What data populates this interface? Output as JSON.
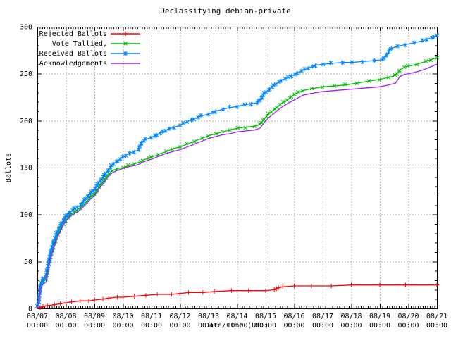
{
  "title": "Declassifying debian-private",
  "axes": {
    "x_label": "Date/Time (UTC)",
    "y_label": "Ballots",
    "y_ticks": [
      0,
      50,
      100,
      150,
      200,
      250,
      300
    ],
    "x_ticks": [
      {
        "date": "08/07",
        "time": "00:00"
      },
      {
        "date": "08/08",
        "time": "00:00"
      },
      {
        "date": "08/09",
        "time": "00:00"
      },
      {
        "date": "08/10",
        "time": "00:00"
      },
      {
        "date": "08/11",
        "time": "00:00"
      },
      {
        "date": "08/12",
        "time": "00:00"
      },
      {
        "date": "08/13",
        "time": "00:00"
      },
      {
        "date": "08/14",
        "time": "00:00"
      },
      {
        "date": "08/15",
        "time": "00:00"
      },
      {
        "date": "08/16",
        "time": "00:00"
      },
      {
        "date": "08/17",
        "time": "00:00"
      },
      {
        "date": "08/18",
        "time": "00:00"
      },
      {
        "date": "08/19",
        "time": "00:00"
      },
      {
        "date": "08/20",
        "time": "00:00"
      },
      {
        "date": "08/21",
        "time": "00:00"
      }
    ]
  },
  "colors": {
    "grid": "#b0b0b0",
    "axis": "#000000",
    "rejected": "#ff0000",
    "tallied": "#00bf00",
    "received": "#0086ff",
    "acknowledgements": "#a020f0"
  },
  "chart_data": {
    "type": "line",
    "x_unit": "days since 08/07 00:00 UTC",
    "xlim": [
      0,
      14
    ],
    "ylim": [
      0,
      300
    ],
    "grid": true,
    "legend_position": "top-left",
    "series": [
      {
        "name": "Rejected Ballots",
        "color": "#ff0000",
        "marker": "plus",
        "points": [
          [
            0,
            0
          ],
          [
            0.1,
            1
          ],
          [
            0.2,
            2
          ],
          [
            0.35,
            3
          ],
          [
            0.6,
            4
          ],
          [
            0.8,
            5
          ],
          [
            1,
            6
          ],
          [
            1.2,
            7
          ],
          [
            1.5,
            8
          ],
          [
            1.8,
            8
          ],
          [
            2,
            9
          ],
          [
            2.3,
            10
          ],
          [
            2.5,
            11
          ],
          [
            2.8,
            12
          ],
          [
            3,
            12
          ],
          [
            3.4,
            13
          ],
          [
            3.8,
            14
          ],
          [
            4.2,
            15
          ],
          [
            4.7,
            15
          ],
          [
            5,
            16
          ],
          [
            5.3,
            17
          ],
          [
            5.8,
            17
          ],
          [
            6.2,
            18
          ],
          [
            6.8,
            19
          ],
          [
            7.4,
            19
          ],
          [
            8,
            19
          ],
          [
            8.3,
            20
          ],
          [
            8.45,
            22
          ],
          [
            8.6,
            23
          ],
          [
            9,
            24
          ],
          [
            9.6,
            24
          ],
          [
            10.3,
            24
          ],
          [
            11,
            25
          ],
          [
            12,
            25
          ],
          [
            12.9,
            25
          ],
          [
            14,
            25
          ]
        ]
      },
      {
        "name": "Vote Tallied,",
        "color": "#00bf00",
        "marker": "cross",
        "points": [
          [
            0,
            0
          ],
          [
            0.05,
            8
          ],
          [
            0.09,
            18
          ],
          [
            0.13,
            25
          ],
          [
            0.2,
            29
          ],
          [
            0.3,
            31
          ],
          [
            0.36,
            40
          ],
          [
            0.44,
            52
          ],
          [
            0.52,
            61
          ],
          [
            0.62,
            71
          ],
          [
            0.72,
            79
          ],
          [
            0.82,
            85
          ],
          [
            0.92,
            90
          ],
          [
            1,
            94
          ],
          [
            1.15,
            99
          ],
          [
            1.3,
            103
          ],
          [
            1.5,
            107
          ],
          [
            1.7,
            113
          ],
          [
            1.85,
            118
          ],
          [
            2,
            122
          ],
          [
            2.15,
            129
          ],
          [
            2.3,
            135
          ],
          [
            2.45,
            141
          ],
          [
            2.6,
            146
          ],
          [
            2.8,
            149
          ],
          [
            3,
            150
          ],
          [
            3.2,
            152
          ],
          [
            3.4,
            154
          ],
          [
            3.6,
            156
          ],
          [
            3.7,
            158
          ],
          [
            3.9,
            160
          ],
          [
            4,
            161
          ],
          [
            4.25,
            164
          ],
          [
            4.5,
            167
          ],
          [
            4.75,
            170
          ],
          [
            5,
            172
          ],
          [
            5.25,
            175
          ],
          [
            5.5,
            178
          ],
          [
            5.75,
            181
          ],
          [
            6,
            184
          ],
          [
            6.25,
            186
          ],
          [
            6.5,
            188
          ],
          [
            6.75,
            190
          ],
          [
            7,
            192
          ],
          [
            7.3,
            193
          ],
          [
            7.6,
            194
          ],
          [
            7.8,
            196
          ],
          [
            7.95,
            202
          ],
          [
            8.1,
            207
          ],
          [
            8.3,
            212
          ],
          [
            8.5,
            217
          ],
          [
            8.75,
            222
          ],
          [
            9,
            228
          ],
          [
            9.3,
            232
          ],
          [
            9.6,
            234
          ],
          [
            10,
            236
          ],
          [
            10.4,
            237
          ],
          [
            10.8,
            238
          ],
          [
            11.2,
            240
          ],
          [
            11.6,
            242
          ],
          [
            12,
            244
          ],
          [
            12.3,
            246
          ],
          [
            12.55,
            248
          ],
          [
            12.7,
            254
          ],
          [
            12.85,
            257
          ],
          [
            13,
            258
          ],
          [
            13.3,
            260
          ],
          [
            13.6,
            263
          ],
          [
            14,
            267
          ]
        ]
      },
      {
        "name": "Received Ballots",
        "color": "#0086ff",
        "marker": "star",
        "points": [
          [
            0,
            0
          ],
          [
            0.04,
            6
          ],
          [
            0.07,
            14
          ],
          [
            0.1,
            22
          ],
          [
            0.14,
            28
          ],
          [
            0.2,
            31
          ],
          [
            0.3,
            33
          ],
          [
            0.35,
            42
          ],
          [
            0.42,
            54
          ],
          [
            0.5,
            64
          ],
          [
            0.6,
            74
          ],
          [
            0.7,
            82
          ],
          [
            0.8,
            88
          ],
          [
            0.9,
            93
          ],
          [
            1,
            98
          ],
          [
            1.15,
            103
          ],
          [
            1.3,
            106
          ],
          [
            1.5,
            110
          ],
          [
            1.7,
            117
          ],
          [
            1.85,
            122
          ],
          [
            2,
            127
          ],
          [
            2.15,
            134
          ],
          [
            2.3,
            140
          ],
          [
            2.45,
            146
          ],
          [
            2.6,
            152
          ],
          [
            2.75,
            156
          ],
          [
            2.9,
            159
          ],
          [
            3,
            161
          ],
          [
            3.2,
            165
          ],
          [
            3.4,
            167
          ],
          [
            3.55,
            169
          ],
          [
            3.65,
            177
          ],
          [
            3.8,
            180
          ],
          [
            4,
            182
          ],
          [
            4.2,
            185
          ],
          [
            4.4,
            188
          ],
          [
            4.6,
            191
          ],
          [
            4.8,
            193
          ],
          [
            5,
            195
          ],
          [
            5.25,
            199
          ],
          [
            5.5,
            202
          ],
          [
            5.75,
            205
          ],
          [
            6,
            207
          ],
          [
            6.25,
            210
          ],
          [
            6.5,
            212
          ],
          [
            6.75,
            214
          ],
          [
            7,
            215
          ],
          [
            7.25,
            217
          ],
          [
            7.5,
            218
          ],
          [
            7.7,
            219
          ],
          [
            7.8,
            222
          ],
          [
            7.95,
            229
          ],
          [
            8.15,
            234
          ],
          [
            8.35,
            239
          ],
          [
            8.55,
            243
          ],
          [
            8.8,
            246
          ],
          [
            9,
            249
          ],
          [
            9.25,
            253
          ],
          [
            9.5,
            256
          ],
          [
            9.75,
            259
          ],
          [
            10,
            260
          ],
          [
            10.3,
            261
          ],
          [
            10.7,
            262
          ],
          [
            11,
            262
          ],
          [
            11.4,
            263
          ],
          [
            11.8,
            264
          ],
          [
            12.1,
            265
          ],
          [
            12.25,
            271
          ],
          [
            12.4,
            277
          ],
          [
            12.6,
            279
          ],
          [
            12.9,
            281
          ],
          [
            13.2,
            283
          ],
          [
            13.5,
            285
          ],
          [
            13.8,
            288
          ],
          [
            14,
            291
          ]
        ]
      },
      {
        "name": "Acknowledgements",
        "color": "#a020f0",
        "marker": "none",
        "points": [
          [
            0,
            0
          ],
          [
            0.05,
            6
          ],
          [
            0.09,
            16
          ],
          [
            0.13,
            23
          ],
          [
            0.2,
            26
          ],
          [
            0.3,
            28
          ],
          [
            0.36,
            38
          ],
          [
            0.44,
            50
          ],
          [
            0.52,
            59
          ],
          [
            0.62,
            69
          ],
          [
            0.72,
            77
          ],
          [
            0.82,
            83
          ],
          [
            0.92,
            89
          ],
          [
            1,
            93
          ],
          [
            1.15,
            98
          ],
          [
            1.3,
            101
          ],
          [
            1.5,
            105
          ],
          [
            1.7,
            111
          ],
          [
            1.85,
            116
          ],
          [
            2,
            120
          ],
          [
            2.15,
            127
          ],
          [
            2.3,
            133
          ],
          [
            2.45,
            139
          ],
          [
            2.6,
            144
          ],
          [
            2.8,
            147
          ],
          [
            3,
            149
          ],
          [
            3.2,
            151
          ],
          [
            3.4,
            152
          ],
          [
            3.6,
            154
          ],
          [
            3.7,
            156
          ],
          [
            3.9,
            158
          ],
          [
            4,
            159
          ],
          [
            4.25,
            162
          ],
          [
            4.5,
            165
          ],
          [
            4.75,
            167
          ],
          [
            5,
            169
          ],
          [
            5.25,
            172
          ],
          [
            5.5,
            175
          ],
          [
            5.75,
            178
          ],
          [
            6,
            181
          ],
          [
            6.25,
            183
          ],
          [
            6.5,
            185
          ],
          [
            6.75,
            186
          ],
          [
            7,
            188
          ],
          [
            7.3,
            189
          ],
          [
            7.6,
            190
          ],
          [
            7.8,
            192
          ],
          [
            7.95,
            198
          ],
          [
            8.1,
            203
          ],
          [
            8.3,
            208
          ],
          [
            8.5,
            213
          ],
          [
            8.75,
            218
          ],
          [
            9,
            222
          ],
          [
            9.3,
            227
          ],
          [
            9.6,
            229
          ],
          [
            10,
            231
          ],
          [
            10.4,
            232
          ],
          [
            10.8,
            233
          ],
          [
            11.2,
            234
          ],
          [
            11.6,
            235
          ],
          [
            12,
            236
          ],
          [
            12.3,
            238
          ],
          [
            12.55,
            240
          ],
          [
            12.7,
            247
          ],
          [
            12.85,
            249
          ],
          [
            13,
            250
          ],
          [
            13.3,
            252
          ],
          [
            13.6,
            255
          ],
          [
            14,
            260
          ]
        ]
      }
    ]
  }
}
